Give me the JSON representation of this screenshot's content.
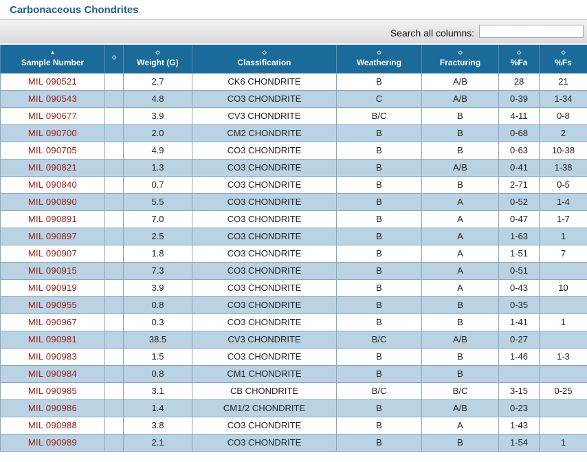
{
  "page": {
    "title": "Carbonaceous Chondrites"
  },
  "search": {
    "label": "Search all columns:",
    "value": "",
    "placeholder": ""
  },
  "table": {
    "columns": [
      {
        "label": "Sample Number",
        "sort_icon": "▲"
      },
      {
        "label": "",
        "sort_icon": "⬦"
      },
      {
        "label": "Weight (G)",
        "sort_icon": "⬦"
      },
      {
        "label": "Classification",
        "sort_icon": "⬦"
      },
      {
        "label": "Weathering",
        "sort_icon": "⬦"
      },
      {
        "label": "Fracturing",
        "sort_icon": "⬦"
      },
      {
        "label": "%Fa",
        "sort_icon": "⬦"
      },
      {
        "label": "%Fs",
        "sort_icon": "⬦"
      }
    ],
    "rows": [
      [
        "MIL 090521",
        "",
        "2.7",
        "CK6 CHONDRITE",
        "B",
        "A/B",
        "28",
        "21"
      ],
      [
        "MIL 090543",
        "",
        "4.8",
        "CO3 CHONDRITE",
        "C",
        "A/B",
        "0-39",
        "1-34"
      ],
      [
        "MIL 090677",
        "",
        "3.9",
        "CV3 CHONDRITE",
        "B/C",
        "B",
        "4-11",
        "0-8"
      ],
      [
        "MIL 090700",
        "",
        "2.0",
        "CM2 CHONDRITE",
        "B",
        "B",
        "0-68",
        "2"
      ],
      [
        "MIL 090705",
        "",
        "4.9",
        "CO3 CHONDRITE",
        "B",
        "B",
        "0-63",
        "10-38"
      ],
      [
        "MIL 090821",
        "",
        "1.3",
        "CO3 CHONDRITE",
        "B",
        "A/B",
        "0-41",
        "1-38"
      ],
      [
        "MIL 090840",
        "",
        "0.7",
        "CO3 CHONDRITE",
        "B",
        "B",
        "2-71",
        "0-5"
      ],
      [
        "MIL 090890",
        "",
        "5.5",
        "CO3 CHONDRITE",
        "B",
        "A",
        "0-52",
        "1-4"
      ],
      [
        "MIL 090891",
        "",
        "7.0",
        "CO3 CHONDRITE",
        "B",
        "A",
        "0-47",
        "1-7"
      ],
      [
        "MIL 090897",
        "",
        "2.5",
        "CO3 CHONDRITE",
        "B",
        "A",
        "1-63",
        "1"
      ],
      [
        "MIL 090907",
        "",
        "1.8",
        "CO3 CHONDRITE",
        "B",
        "A",
        "1-51",
        "7"
      ],
      [
        "MIL 090915",
        "",
        "7.3",
        "CO3 CHONDRITE",
        "B",
        "A",
        "0-51",
        ""
      ],
      [
        "MIL 090919",
        "",
        "3.9",
        "CO3 CHONDRITE",
        "B",
        "A",
        "0-43",
        "10"
      ],
      [
        "MIL 090955",
        "",
        "0.8",
        "CO3 CHONDRITE",
        "B",
        "B",
        "0-35",
        ""
      ],
      [
        "MIL 090967",
        "",
        "0.3",
        "CO3 CHONDRITE",
        "B",
        "B",
        "1-41",
        "1"
      ],
      [
        "MIL 090981",
        "",
        "38.5",
        "CV3 CHONDRITE",
        "B/C",
        "A/B",
        "0-27",
        ""
      ],
      [
        "MIL 090983",
        "",
        "1.5",
        "CO3 CHONDRITE",
        "B",
        "B",
        "1-46",
        "1-3"
      ],
      [
        "MIL 090984",
        "",
        "0.8",
        "CM1 CHONDRITE",
        "B",
        "B",
        "",
        ""
      ],
      [
        "MIL 090985",
        "",
        "3.1",
        "CB CHONDRITE",
        "B/C",
        "B/C",
        "3-15",
        "0-25"
      ],
      [
        "MIL 090986",
        "",
        "1.4",
        "CM1/2 CHONDRITE",
        "B",
        "A/B",
        "0-23",
        ""
      ],
      [
        "MIL 090988",
        "",
        "3.8",
        "CO3 CHONDRITE",
        "B",
        "A",
        "1-43",
        ""
      ],
      [
        "MIL 090989",
        "",
        "2.1",
        "CO3 CHONDRITE",
        "B",
        "B",
        "1-54",
        "1"
      ]
    ]
  },
  "colors": {
    "title": "#1f5f8b",
    "header_bg": "#1a6a9a",
    "row_alt_bg": "#b9d3e4",
    "sample_link": "#a01c12"
  }
}
